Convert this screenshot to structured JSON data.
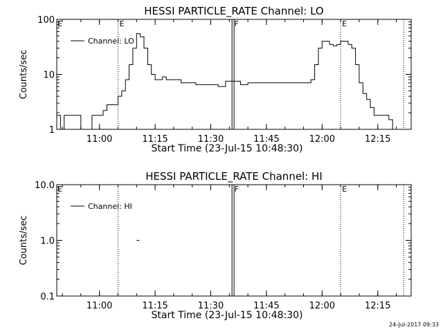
{
  "footer": "24-Jul-2017 09:33",
  "chart_data": [
    {
      "type": "line",
      "title": "HESSI PARTICLE_RATE Channel: LO",
      "xlabel": "Start Time (23-Jul-15 10:48:30)",
      "ylabel": "Counts/sec",
      "yscale": "log",
      "ylim": [
        1,
        100
      ],
      "yticks": [
        1,
        10,
        100
      ],
      "ytick_labels": [
        "1",
        "10",
        "100"
      ],
      "xlim": [
        "10:48:30",
        "12:24:00"
      ],
      "xticks": [
        "11:00",
        "11:15",
        "11:30",
        "11:45",
        "12:00",
        "12:15"
      ],
      "legend": {
        "label": "Channel: LO",
        "placement": "top-left"
      },
      "markers": [
        {
          "time": "11:05",
          "label": "E",
          "style": "dotted"
        },
        {
          "time": "11:36",
          "label": "F",
          "style": "solid"
        },
        {
          "time": "12:05",
          "label": "E",
          "style": "dotted"
        },
        {
          "time": "12:22",
          "label": "",
          "style": "dotted"
        }
      ],
      "edge_labels": [
        {
          "time": "10:48:30",
          "label": "E"
        }
      ],
      "series": [
        {
          "x": [
            "10:48:30",
            "10:49:30",
            "10:50:30",
            "10:51",
            "10:52",
            "10:53",
            "10:54",
            "10:55",
            "10:56",
            "10:57",
            "10:58",
            "10:59",
            "11:00",
            "11:01",
            "11:02",
            "11:03",
            "11:04",
            "11:05",
            "11:06",
            "11:07",
            "11:08",
            "11:09",
            "11:10",
            "11:11",
            "11:12",
            "11:13",
            "11:14",
            "11:15",
            "11:16",
            "11:17",
            "11:18",
            "11:20",
            "11:22",
            "11:24",
            "11:26",
            "11:28",
            "11:30",
            "11:32",
            "11:34",
            "11:36",
            "11:38",
            "11:40",
            "11:42",
            "11:44",
            "11:46",
            "11:48",
            "11:50",
            "11:52",
            "11:54",
            "11:56",
            "11:57",
            "11:58",
            "11:59",
            "12:00",
            "12:01",
            "12:02",
            "12:03",
            "12:04",
            "12:05",
            "12:06",
            "12:07",
            "12:08",
            "12:09",
            "12:10",
            "12:11",
            "12:12",
            "12:13",
            "12:14",
            "12:15",
            "12:16",
            "12:17",
            "12:18",
            "12:19",
            "12:20",
            "12:21",
            "12:22"
          ],
          "y": [
            1.8,
            1.0,
            1.8,
            1.8,
            1.8,
            1.8,
            1.8,
            1.0,
            1.0,
            1.0,
            1.8,
            1.8,
            1.8,
            2.2,
            2.8,
            2.8,
            2.8,
            4.0,
            5.0,
            8.0,
            15.0,
            30.0,
            55.0,
            48.0,
            30.0,
            15.0,
            10.0,
            8.0,
            8.0,
            9.0,
            8.0,
            8.0,
            7.0,
            7.0,
            6.5,
            6.5,
            6.5,
            6.0,
            7.5,
            7.5,
            6.5,
            7.0,
            7.0,
            7.0,
            7.0,
            7.0,
            7.0,
            7.0,
            7.0,
            7.0,
            8.0,
            15.0,
            30.0,
            40.0,
            40.0,
            35.0,
            33.0,
            35.0,
            40.0,
            40.0,
            35.0,
            30.0,
            15.0,
            7.0,
            4.5,
            3.5,
            2.5,
            1.8,
            1.8,
            1.8,
            1.8,
            1.5,
            1.0,
            1.0,
            1.0,
            1.0
          ]
        }
      ]
    },
    {
      "type": "line",
      "title": "HESSI PARTICLE_RATE Channel: HI",
      "xlabel": "Start Time (23-Jul-15 10:48:30)",
      "ylabel": "Counts/sec",
      "yscale": "log",
      "ylim": [
        0.1,
        10
      ],
      "yticks": [
        0.1,
        1,
        10
      ],
      "ytick_labels": [
        "0.1",
        "1.0",
        "10.0"
      ],
      "xlim": [
        "10:48:30",
        "12:24:00"
      ],
      "xticks": [
        "11:00",
        "11:15",
        "11:30",
        "11:45",
        "12:00",
        "12:15"
      ],
      "legend": {
        "label": "Channel: HI",
        "placement": "top-left"
      },
      "markers": [
        {
          "time": "11:05",
          "label": "",
          "style": "dotted"
        },
        {
          "time": "11:36",
          "label": "F",
          "style": "solid"
        },
        {
          "time": "12:05",
          "label": "E",
          "style": "dotted"
        },
        {
          "time": "12:22",
          "label": "",
          "style": "dotted"
        }
      ],
      "edge_labels": [
        {
          "time": "10:48:30",
          "label": "E"
        }
      ],
      "series": [
        {
          "x": [
            "11:10:00",
            "11:10:45"
          ],
          "y": [
            1.0,
            1.0
          ]
        }
      ]
    }
  ]
}
